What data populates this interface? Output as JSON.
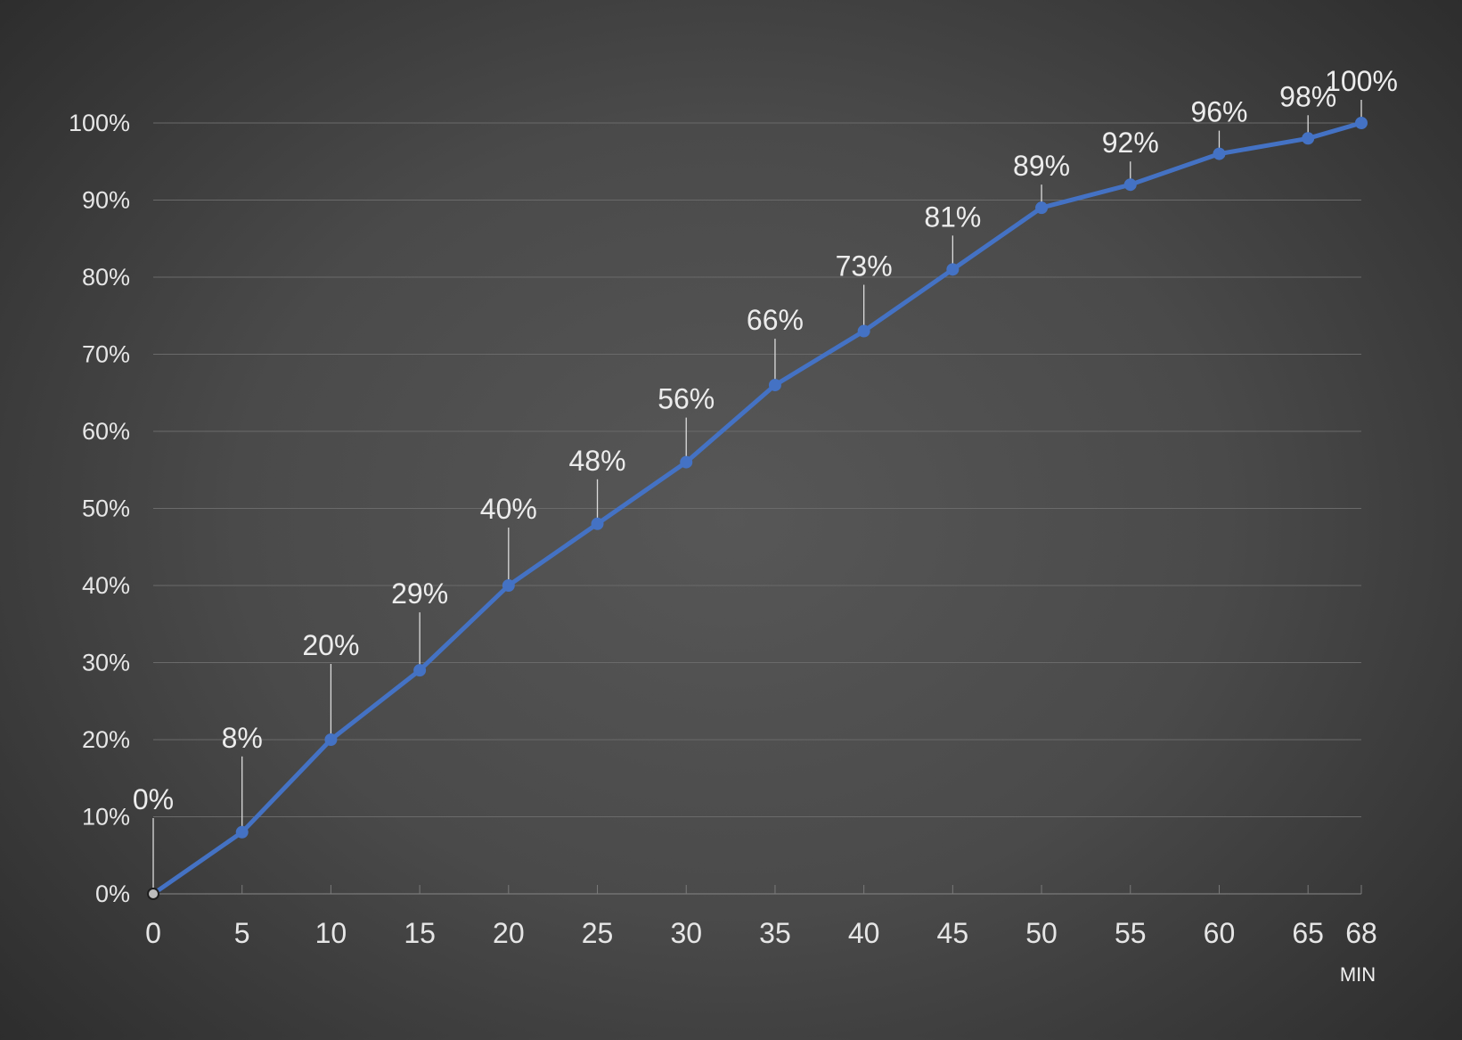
{
  "chart_data": {
    "type": "line",
    "x": [
      0,
      5,
      10,
      15,
      20,
      25,
      30,
      35,
      40,
      45,
      50,
      55,
      60,
      65,
      68
    ],
    "x_tick_labels": [
      "0",
      "5",
      "10",
      "15",
      "20",
      "25",
      "30",
      "35",
      "40",
      "45",
      "50",
      "55",
      "60",
      "65",
      "68"
    ],
    "series": [
      {
        "values": [
          0,
          8,
          20,
          29,
          40,
          48,
          56,
          66,
          73,
          81,
          89,
          92,
          96,
          98,
          100
        ]
      }
    ],
    "data_labels": [
      "0%",
      "8%",
      "20%",
      "29%",
      "40%",
      "48%",
      "56%",
      "66%",
      "73%",
      "81%",
      "89%",
      "92%",
      "96%",
      "98%",
      "100%"
    ],
    "y_tick_labels": [
      "0%",
      "10%",
      "20%",
      "30%",
      "40%",
      "50%",
      "60%",
      "70%",
      "80%",
      "90%",
      "100%"
    ],
    "x_unit_label": "MIN",
    "xlim": [
      0,
      68
    ],
    "ylim": [
      0,
      100
    ],
    "grid": true,
    "legend": "none",
    "colors": {
      "line": "#4472c4",
      "first_point": "#bdbdbd"
    }
  }
}
